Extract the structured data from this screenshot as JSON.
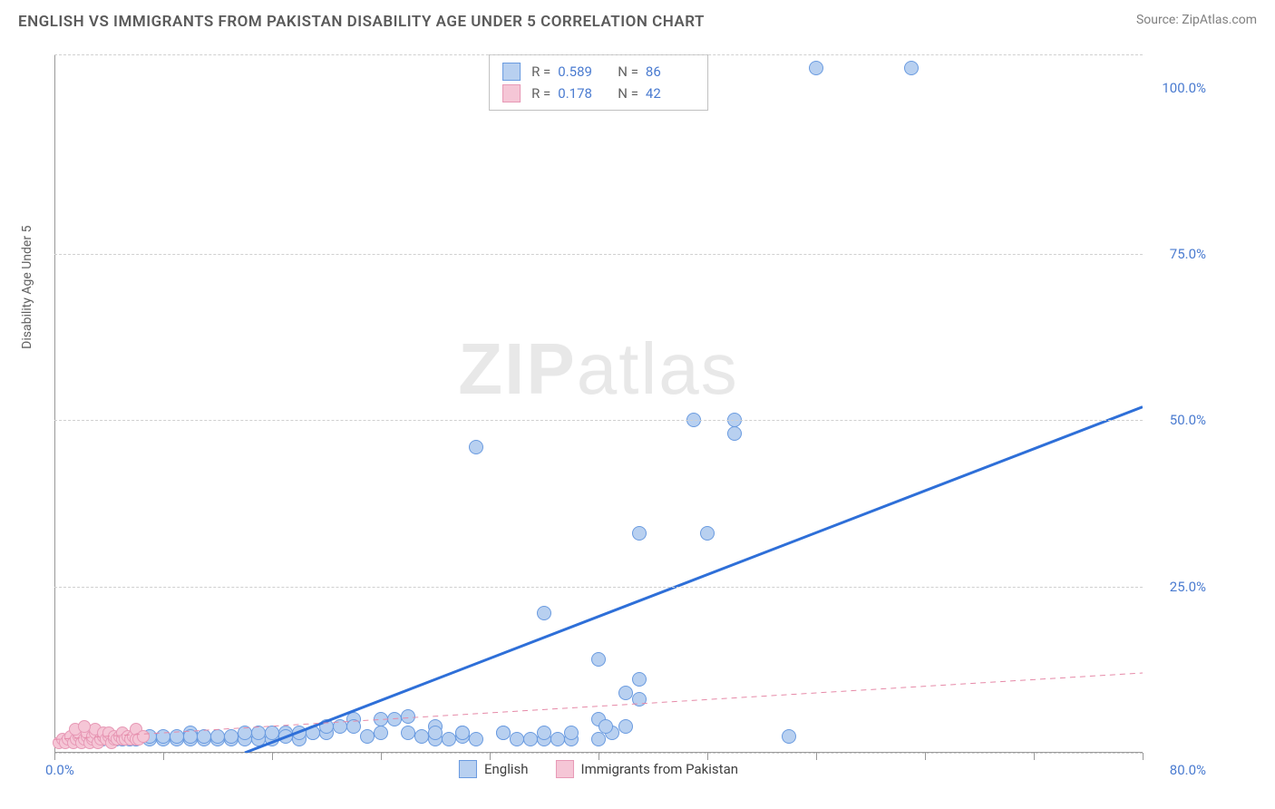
{
  "header": {
    "title": "ENGLISH VS IMMIGRANTS FROM PAKISTAN DISABILITY AGE UNDER 5 CORRELATION CHART",
    "source_prefix": "Source: ",
    "source_link": "ZipAtlas.com"
  },
  "watermark": {
    "zip": "ZIP",
    "atlas": "atlas"
  },
  "chart": {
    "type": "scatter",
    "y_label": "Disability Age Under 5",
    "xlim": [
      0,
      80
    ],
    "ylim": [
      0,
      105
    ],
    "x_start_label": "0.0%",
    "x_end_label": "80.0%",
    "y_ticks": [
      {
        "v": 25,
        "label": "25.0%"
      },
      {
        "v": 50,
        "label": "50.0%"
      },
      {
        "v": 75,
        "label": "75.0%"
      },
      {
        "v": 100,
        "label": "100.0%"
      }
    ],
    "x_tick_positions": [
      0,
      8,
      16,
      24,
      32,
      40,
      48,
      56,
      64,
      72,
      80
    ],
    "gridlines": [
      0,
      25,
      50,
      75,
      105
    ],
    "background_color": "#ffffff",
    "grid_color": "#d0d0d0",
    "series": [
      {
        "name": "English",
        "color_fill": "#b8d0f0",
        "color_stroke": "#6a9be0",
        "marker_radius": 8,
        "trend": {
          "x1": 14,
          "y1": 0,
          "x2": 80,
          "y2": 52,
          "stroke": "#2e6fd8",
          "width": 3,
          "dash": "none"
        },
        "stats": {
          "R": "0.589",
          "N": "86"
        },
        "points": [
          [
            56,
            103
          ],
          [
            63,
            103
          ],
          [
            47,
            50
          ],
          [
            50,
            50
          ],
          [
            50,
            48
          ],
          [
            43,
            33
          ],
          [
            48,
            33
          ],
          [
            31,
            46
          ],
          [
            36,
            21
          ],
          [
            40,
            14
          ],
          [
            42,
            9
          ],
          [
            43,
            11
          ],
          [
            43,
            8
          ],
          [
            40,
            5
          ],
          [
            41,
            3
          ],
          [
            42,
            4
          ],
          [
            40,
            2
          ],
          [
            38,
            2
          ],
          [
            36,
            2
          ],
          [
            33,
            3
          ],
          [
            34,
            2
          ],
          [
            31,
            2
          ],
          [
            30,
            2.5
          ],
          [
            29,
            2
          ],
          [
            28,
            2
          ],
          [
            27,
            2.5
          ],
          [
            25,
            5
          ],
          [
            26,
            5.5
          ],
          [
            24,
            3
          ],
          [
            23,
            2.5
          ],
          [
            22,
            5
          ],
          [
            21,
            4
          ],
          [
            20,
            3
          ],
          [
            19,
            3
          ],
          [
            18,
            2
          ],
          [
            17,
            3
          ],
          [
            16,
            2
          ],
          [
            15,
            2
          ],
          [
            14,
            2
          ],
          [
            13,
            2
          ],
          [
            12,
            2
          ],
          [
            11,
            2
          ],
          [
            10,
            2
          ],
          [
            10,
            3
          ],
          [
            9,
            2
          ],
          [
            9,
            2.5
          ],
          [
            8,
            2
          ],
          [
            8,
            2.5
          ],
          [
            7,
            2
          ],
          [
            7,
            2.5
          ],
          [
            6,
            2
          ],
          [
            6,
            2.5
          ],
          [
            5.5,
            2
          ],
          [
            5,
            2
          ],
          [
            5,
            2.5
          ],
          [
            4.5,
            2
          ],
          [
            4,
            2
          ],
          [
            4,
            2.5
          ],
          [
            3.5,
            2
          ],
          [
            3,
            2
          ],
          [
            3,
            2.5
          ],
          [
            36,
            3
          ],
          [
            33,
            3
          ],
          [
            30,
            3
          ],
          [
            28,
            4
          ],
          [
            26,
            3
          ],
          [
            24,
            5
          ],
          [
            22,
            4
          ],
          [
            20,
            4
          ],
          [
            19,
            3
          ],
          [
            18,
            3
          ],
          [
            17,
            2.5
          ],
          [
            16,
            3
          ],
          [
            15,
            3
          ],
          [
            14,
            3
          ],
          [
            13,
            2.5
          ],
          [
            12,
            2.5
          ],
          [
            11,
            2.5
          ],
          [
            10,
            2.5
          ],
          [
            35,
            2
          ],
          [
            37,
            2
          ],
          [
            38,
            3
          ],
          [
            28,
            3
          ],
          [
            30,
            3
          ],
          [
            54,
            2.5
          ],
          [
            40.5,
            4
          ]
        ]
      },
      {
        "name": "Immigrants from Pakistan",
        "color_fill": "#f5c6d6",
        "color_stroke": "#e799b6",
        "marker_radius": 7,
        "trend": {
          "x1": 0,
          "y1": 2,
          "x2": 80,
          "y2": 12,
          "stroke": "#e68aa8",
          "width": 1,
          "dash": "6,5"
        },
        "stats": {
          "R": "0.178",
          "N": "42"
        },
        "points": [
          [
            0.3,
            1.5
          ],
          [
            0.6,
            2
          ],
          [
            0.8,
            1.5
          ],
          [
            1,
            2
          ],
          [
            1.2,
            2.5
          ],
          [
            1.4,
            1.5
          ],
          [
            1.6,
            2
          ],
          [
            1.8,
            2.5
          ],
          [
            1.8,
            3
          ],
          [
            2,
            1.5
          ],
          [
            2.2,
            2
          ],
          [
            2.4,
            2.5
          ],
          [
            2.4,
            3
          ],
          [
            2.6,
            1.5
          ],
          [
            2.8,
            2
          ],
          [
            2.8,
            2.5
          ],
          [
            3,
            3
          ],
          [
            3,
            3.5
          ],
          [
            3.2,
            1.5
          ],
          [
            3.4,
            2
          ],
          [
            3.6,
            2.5
          ],
          [
            3.6,
            3
          ],
          [
            3.8,
            2
          ],
          [
            4,
            2.5
          ],
          [
            4,
            3
          ],
          [
            4.2,
            1.5
          ],
          [
            4.4,
            2
          ],
          [
            4.4,
            2.5
          ],
          [
            4.6,
            2
          ],
          [
            4.8,
            2.5
          ],
          [
            5,
            2
          ],
          [
            5,
            3
          ],
          [
            5.2,
            2
          ],
          [
            5.4,
            2.5
          ],
          [
            5.6,
            2
          ],
          [
            5.8,
            2.5
          ],
          [
            6,
            2
          ],
          [
            6,
            3.5
          ],
          [
            6.2,
            2
          ],
          [
            6.5,
            2.5
          ],
          [
            1.5,
            3.5
          ],
          [
            2.2,
            4
          ]
        ]
      }
    ]
  },
  "legend_top": {
    "R_label": "R =",
    "N_label": "N ="
  },
  "legend_bottom": [
    {
      "label": "English",
      "fill": "#b8d0f0",
      "stroke": "#6a9be0"
    },
    {
      "label": "Immigrants from Pakistan",
      "fill": "#f5c6d6",
      "stroke": "#e799b6"
    }
  ]
}
